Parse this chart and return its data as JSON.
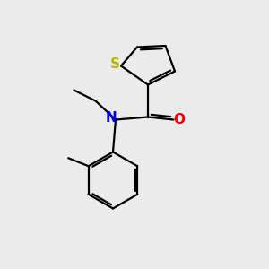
{
  "background_color": "#ebebeb",
  "atom_colors": {
    "S": "#b8b800",
    "N": "#0000ee",
    "O": "#ee0000",
    "C": "#000000"
  },
  "line_color": "#000000",
  "line_width": 1.6,
  "font_size": 10.5
}
